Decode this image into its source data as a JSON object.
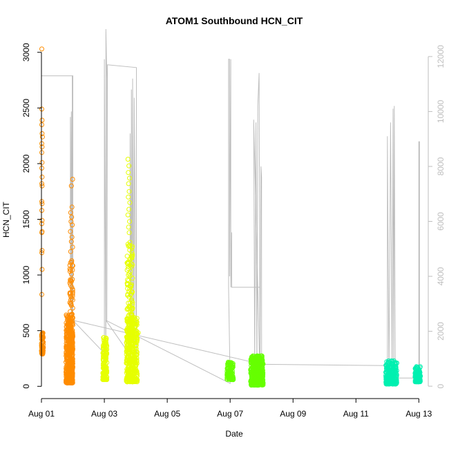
{
  "chart_data": {
    "type": "scatter",
    "title": "ATOM1 Southbound HCN_CIT",
    "xlabel": "Date",
    "ylabel": "HCN_CIT",
    "xlim": [
      0.0,
      12.3
    ],
    "ylim": [
      -110,
      3110
    ],
    "ylim_right": [
      -450,
      12600
    ],
    "x_ticks": [
      {
        "x": 0,
        "label": "Aug 01"
      },
      {
        "x": 2,
        "label": "Aug 03"
      },
      {
        "x": 4,
        "label": "Aug 05"
      },
      {
        "x": 6,
        "label": "Aug 07"
      },
      {
        "x": 8,
        "label": "Aug 09"
      },
      {
        "x": 10,
        "label": "Aug 11"
      },
      {
        "x": 12,
        "label": "Aug 13"
      }
    ],
    "y_ticks_left": [
      0,
      500,
      1000,
      1500,
      2000,
      2500,
      3000
    ],
    "y_ticks_right": [
      0,
      2000,
      4000,
      6000,
      8000,
      10000,
      12000
    ],
    "grid": false,
    "legend": "none",
    "colors": {
      "segment_1": "#ff8c00",
      "segment_2": "#e6ff00",
      "segment_3": "#66ff00",
      "segment_4": "#00f0b0",
      "secondary_line": "#bebebe",
      "axis": "#000000"
    },
    "points_series": [
      {
        "color": "#ff8c00",
        "groups": [
          {
            "x_start": 0.0,
            "x_end": 0.06,
            "y_min": 290,
            "y_max": 480,
            "count": 90
          },
          {
            "x_start": 0.78,
            "x_end": 1.0,
            "y_min": 30,
            "y_max": 650,
            "count": 420
          },
          {
            "x_start": 0.9,
            "x_end": 1.0,
            "y_min": 100,
            "y_max": 1180,
            "count": 120
          }
        ],
        "outliers": [
          {
            "x": 0.01,
            "y": 3030
          },
          {
            "x": 0.01,
            "y": 2490
          },
          {
            "x": 0.02,
            "y": 2390
          },
          {
            "x": 0.01,
            "y": 2350
          },
          {
            "x": 0.02,
            "y": 2270
          },
          {
            "x": 0.03,
            "y": 2240
          },
          {
            "x": 0.01,
            "y": 2180
          },
          {
            "x": 0.02,
            "y": 2150
          },
          {
            "x": 0.01,
            "y": 2100
          },
          {
            "x": 0.02,
            "y": 2010
          },
          {
            "x": 0.01,
            "y": 1960
          },
          {
            "x": 0.02,
            "y": 1880
          },
          {
            "x": 0.01,
            "y": 1820
          },
          {
            "x": 0.02,
            "y": 1800
          },
          {
            "x": 0.01,
            "y": 1660
          },
          {
            "x": 0.02,
            "y": 1640
          },
          {
            "x": 0.01,
            "y": 1580
          },
          {
            "x": 0.02,
            "y": 1490
          },
          {
            "x": 0.01,
            "y": 1460
          },
          {
            "x": 0.02,
            "y": 1390
          },
          {
            "x": 0.01,
            "y": 1380
          },
          {
            "x": 0.02,
            "y": 1220
          },
          {
            "x": 0.01,
            "y": 1200
          },
          {
            "x": 0.02,
            "y": 1050
          },
          {
            "x": 0.01,
            "y": 825
          },
          {
            "x": 0.99,
            "y": 1860
          },
          {
            "x": 0.95,
            "y": 1800
          },
          {
            "x": 0.97,
            "y": 1610
          },
          {
            "x": 0.93,
            "y": 1560
          },
          {
            "x": 0.96,
            "y": 1520
          },
          {
            "x": 0.94,
            "y": 1480
          },
          {
            "x": 0.98,
            "y": 1450
          },
          {
            "x": 0.92,
            "y": 1390
          },
          {
            "x": 0.97,
            "y": 1340
          },
          {
            "x": 0.95,
            "y": 1300
          },
          {
            "x": 0.99,
            "y": 1250
          },
          {
            "x": 0.93,
            "y": 1210
          }
        ]
      },
      {
        "color": "#e6ff00",
        "groups": [
          {
            "x_start": 1.95,
            "x_end": 2.08,
            "y_min": 60,
            "y_max": 440,
            "count": 180
          },
          {
            "x_start": 2.7,
            "x_end": 3.05,
            "y_min": 40,
            "y_max": 620,
            "count": 380
          },
          {
            "x_start": 2.72,
            "x_end": 2.9,
            "y_min": 400,
            "y_max": 1300,
            "count": 130
          }
        ],
        "outliers": [
          {
            "x": 2.75,
            "y": 2040
          },
          {
            "x": 2.78,
            "y": 1980
          },
          {
            "x": 2.76,
            "y": 1920
          },
          {
            "x": 2.8,
            "y": 1870
          },
          {
            "x": 2.77,
            "y": 1820
          },
          {
            "x": 2.79,
            "y": 1750
          },
          {
            "x": 2.76,
            "y": 1700
          },
          {
            "x": 2.81,
            "y": 1650
          },
          {
            "x": 2.78,
            "y": 1590
          },
          {
            "x": 2.75,
            "y": 1540
          },
          {
            "x": 2.8,
            "y": 1480
          },
          {
            "x": 2.77,
            "y": 1430
          },
          {
            "x": 2.79,
            "y": 1380
          },
          {
            "x": 3.02,
            "y": 440
          },
          {
            "x": 3.08,
            "y": 480
          }
        ]
      },
      {
        "color": "#66ff00",
        "groups": [
          {
            "x_start": 5.9,
            "x_end": 6.1,
            "y_min": 60,
            "y_max": 220,
            "count": 120
          },
          {
            "x_start": 6.65,
            "x_end": 7.05,
            "y_min": 10,
            "y_max": 275,
            "count": 420
          }
        ],
        "outliers": []
      },
      {
        "color": "#00f0b0",
        "groups": [
          {
            "x_start": 10.95,
            "x_end": 11.3,
            "y_min": 20,
            "y_max": 230,
            "count": 240
          },
          {
            "x_start": 11.88,
            "x_end": 12.05,
            "y_min": 40,
            "y_max": 180,
            "count": 120
          }
        ],
        "outliers": []
      }
    ],
    "secondary_line": {
      "axis": "right",
      "color": "#bebebe",
      "points": [
        {
          "x": 0.0,
          "y": 2600
        },
        {
          "x": 0.0,
          "y": 11300
        },
        {
          "x": 1.0,
          "y": 11300
        },
        {
          "x": 1.0,
          "y": 2400
        },
        {
          "x": 0.92,
          "y": 3000
        },
        {
          "x": 0.92,
          "y": 9800
        },
        {
          "x": 0.95,
          "y": 2600
        },
        {
          "x": 0.95,
          "y": 10000
        },
        {
          "x": 0.98,
          "y": 2500
        },
        {
          "x": 0.98,
          "y": 11300
        },
        {
          "x": 1.0,
          "y": 2400
        },
        {
          "x": 2.0,
          "y": 1200
        },
        {
          "x": 2.0,
          "y": 11900
        },
        {
          "x": 2.05,
          "y": 600
        },
        {
          "x": 2.05,
          "y": 13000
        },
        {
          "x": 2.08,
          "y": 11200
        },
        {
          "x": 2.08,
          "y": 2400
        },
        {
          "x": 2.1,
          "y": 11700
        },
        {
          "x": 3.02,
          "y": 11600
        },
        {
          "x": 3.02,
          "y": 800
        },
        {
          "x": 2.82,
          "y": 2400
        },
        {
          "x": 2.82,
          "y": 9200
        },
        {
          "x": 2.86,
          "y": 2000
        },
        {
          "x": 2.86,
          "y": 10800
        },
        {
          "x": 2.9,
          "y": 1800
        },
        {
          "x": 2.9,
          "y": 11200
        },
        {
          "x": 2.95,
          "y": 600
        },
        {
          "x": 2.95,
          "y": 10500
        },
        {
          "x": 3.02,
          "y": 800
        },
        {
          "x": 2.05,
          "y": 2400
        },
        {
          "x": 6.0,
          "y": 100
        },
        {
          "x": 5.95,
          "y": 3600
        },
        {
          "x": 5.95,
          "y": 11900
        },
        {
          "x": 5.98,
          "y": 11900
        },
        {
          "x": 5.98,
          "y": 4000
        },
        {
          "x": 6.02,
          "y": 11900
        },
        {
          "x": 6.02,
          "y": 3600
        },
        {
          "x": 6.05,
          "y": 5600
        },
        {
          "x": 6.05,
          "y": 3600
        },
        {
          "x": 6.95,
          "y": 3600
        },
        {
          "x": 6.95,
          "y": 200
        },
        {
          "x": 6.75,
          "y": 9700
        },
        {
          "x": 6.78,
          "y": 800
        },
        {
          "x": 6.82,
          "y": 9600
        },
        {
          "x": 6.85,
          "y": 500
        },
        {
          "x": 6.88,
          "y": 10200
        },
        {
          "x": 6.92,
          "y": 11400
        },
        {
          "x": 6.95,
          "y": 300
        },
        {
          "x": 6.98,
          "y": 8000
        },
        {
          "x": 7.0,
          "y": 7600
        },
        {
          "x": 7.0,
          "y": 800
        },
        {
          "x": 1.0,
          "y": 2400
        },
        {
          "x": 7.0,
          "y": 800
        },
        {
          "x": 11.0,
          "y": 750
        },
        {
          "x": 11.0,
          "y": 9100
        },
        {
          "x": 11.05,
          "y": 300
        },
        {
          "x": 11.1,
          "y": 9600
        },
        {
          "x": 11.15,
          "y": 500
        },
        {
          "x": 11.18,
          "y": 10100
        },
        {
          "x": 11.2,
          "y": 600
        },
        {
          "x": 11.22,
          "y": 10200
        },
        {
          "x": 11.25,
          "y": 300
        },
        {
          "x": 11.3,
          "y": 300
        },
        {
          "x": 12.0,
          "y": 300
        },
        {
          "x": 12.0,
          "y": 8900
        },
        {
          "x": 12.02,
          "y": 8900
        },
        {
          "x": 12.02,
          "y": 700
        },
        {
          "x": 12.05,
          "y": 700
        },
        {
          "x": 12.05,
          "y": 600
        }
      ]
    }
  }
}
